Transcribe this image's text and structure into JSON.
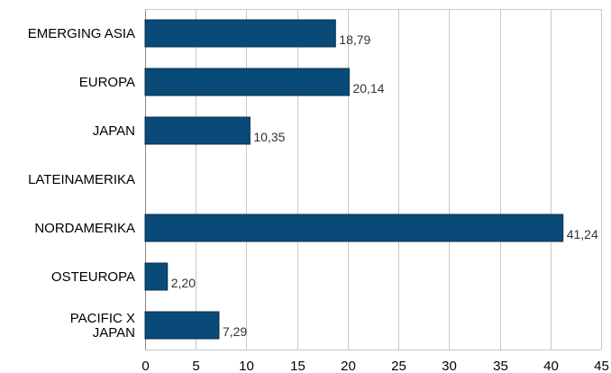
{
  "chart_data": {
    "type": "bar",
    "orientation": "horizontal",
    "categories": [
      [
        "EMERGING ASIA"
      ],
      [
        "EUROPA"
      ],
      [
        "JAPAN"
      ],
      [
        "LATEINAMERIKA"
      ],
      [
        "NORDAMERIKA"
      ],
      [
        "OSTEUROPA"
      ],
      [
        "PACIFIC X",
        "JAPAN"
      ]
    ],
    "values": [
      18.79,
      20.14,
      10.35,
      0,
      41.24,
      2.2,
      7.29
    ],
    "data_labels": [
      "18,79",
      "20,14",
      "10,35",
      "",
      "41,24",
      "2,20",
      "7,29"
    ],
    "xlim": [
      0,
      45
    ],
    "x_ticks": [
      0,
      5,
      10,
      15,
      20,
      25,
      30,
      35,
      40,
      45
    ],
    "x_tick_labels": [
      "0",
      "5",
      "10",
      "15",
      "20",
      "25",
      "30",
      "35",
      "40",
      "45"
    ],
    "grid": true,
    "title": "",
    "xlabel": "",
    "ylabel": "",
    "colors": {
      "bar": "#0a4a78",
      "bar_stroke": "#06304f",
      "grid": "#c8c8c8"
    }
  }
}
